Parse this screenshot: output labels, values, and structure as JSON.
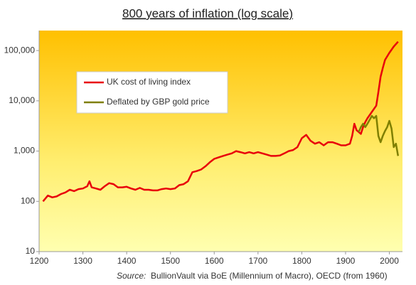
{
  "chart_data": {
    "type": "line",
    "title": "800 years of inflation (log scale)",
    "source_label": "Source:",
    "source": "BullionVault via BoE (Millennium of Macro), OECD (from 1960)",
    "log_y": true,
    "legend": "upper left",
    "xlim": [
      1200,
      2030
    ],
    "xticks": [
      1200,
      1300,
      1400,
      1500,
      1600,
      1700,
      1800,
      1900,
      2000
    ],
    "ylim": [
      10,
      250000
    ],
    "yticks": [
      {
        "value": 10,
        "label": "10"
      },
      {
        "value": 100,
        "label": "100"
      },
      {
        "value": 1000,
        "label": "1,000"
      },
      {
        "value": 10000,
        "label": "10,000"
      },
      {
        "value": 100000,
        "label": "100,000"
      }
    ],
    "series": [
      {
        "name": "UK cost of living index",
        "color": "#e8000b",
        "x": [
          1209,
          1220,
          1230,
          1240,
          1250,
          1260,
          1270,
          1280,
          1290,
          1300,
          1310,
          1315,
          1320,
          1330,
          1340,
          1350,
          1360,
          1370,
          1380,
          1390,
          1400,
          1410,
          1420,
          1430,
          1440,
          1450,
          1460,
          1470,
          1480,
          1490,
          1500,
          1510,
          1520,
          1530,
          1540,
          1550,
          1560,
          1570,
          1580,
          1590,
          1600,
          1610,
          1620,
          1630,
          1640,
          1650,
          1660,
          1670,
          1680,
          1690,
          1700,
          1710,
          1720,
          1730,
          1740,
          1750,
          1760,
          1770,
          1780,
          1790,
          1800,
          1810,
          1820,
          1830,
          1840,
          1850,
          1860,
          1870,
          1880,
          1890,
          1900,
          1910,
          1915,
          1920,
          1925,
          1930,
          1935,
          1940,
          1945,
          1950,
          1960,
          1970,
          1975,
          1980,
          1985,
          1990,
          2000,
          2010,
          2020
        ],
        "values": [
          100,
          130,
          120,
          125,
          140,
          150,
          170,
          160,
          175,
          180,
          200,
          250,
          190,
          180,
          170,
          200,
          230,
          220,
          190,
          190,
          195,
          180,
          170,
          185,
          170,
          170,
          165,
          165,
          175,
          180,
          175,
          180,
          210,
          220,
          250,
          380,
          400,
          430,
          500,
          600,
          700,
          750,
          800,
          850,
          900,
          1000,
          950,
          900,
          950,
          900,
          950,
          900,
          850,
          800,
          800,
          820,
          900,
          1000,
          1050,
          1200,
          1800,
          2100,
          1600,
          1400,
          1500,
          1300,
          1500,
          1500,
          1400,
          1300,
          1300,
          1400,
          2000,
          3500,
          2600,
          2400,
          2200,
          3000,
          3800,
          4500,
          6000,
          8000,
          15000,
          30000,
          45000,
          65000,
          90000,
          120000,
          150000
        ]
      },
      {
        "name": "Deflated by GBP gold price",
        "color": "#7f7f00",
        "x": [
          1930,
          1935,
          1940,
          1945,
          1950,
          1960,
          1965,
          1970,
          1975,
          1980,
          1985,
          1990,
          1995,
          2000,
          2005,
          2010,
          2015,
          2020
        ],
        "values": [
          2400,
          3000,
          3500,
          3000,
          3500,
          5000,
          4500,
          5000,
          2000,
          1500,
          2000,
          2500,
          3000,
          4000,
          2800,
          1200,
          1400,
          800
        ]
      }
    ]
  }
}
